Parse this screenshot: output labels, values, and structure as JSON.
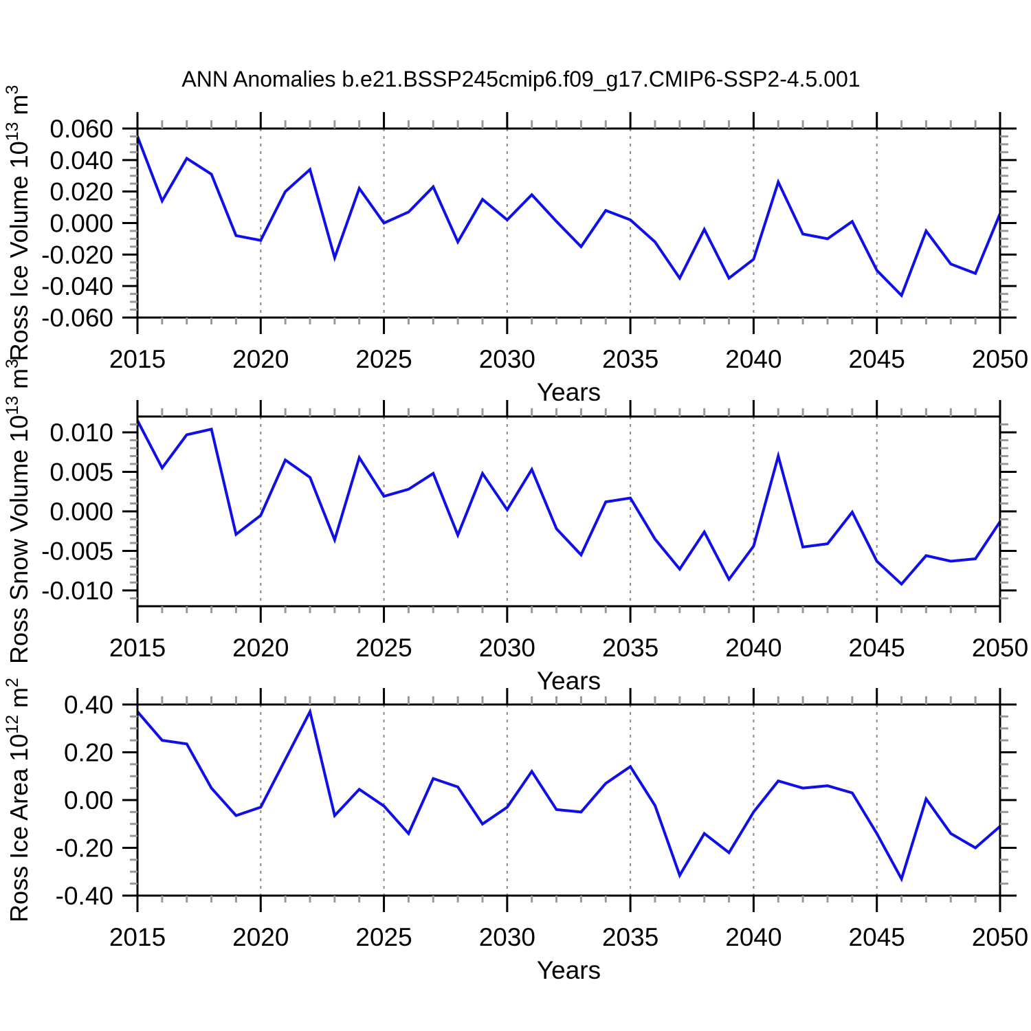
{
  "title": "ANN Anomalies b.e21.BSSP245cmip6.f09_g17.CMIP6-SSP2-4.5.001",
  "years": [
    2015,
    2016,
    2017,
    2018,
    2019,
    2020,
    2021,
    2022,
    2023,
    2024,
    2025,
    2026,
    2027,
    2028,
    2029,
    2030,
    2031,
    2032,
    2033,
    2034,
    2035,
    2036,
    2037,
    2038,
    2039,
    2040,
    2041,
    2042,
    2043,
    2044,
    2045,
    2046,
    2047,
    2048,
    2049,
    2050
  ],
  "axes": {
    "x_major_ticks": [
      2015,
      2020,
      2025,
      2030,
      2035,
      2040,
      2045,
      2050
    ],
    "x_tick_labels": [
      "2015",
      "2020",
      "2025",
      "2030",
      "2035",
      "2040",
      "2045",
      "2050"
    ],
    "x_gridlines": [
      2020,
      2025,
      2030,
      2035,
      2040,
      2045
    ],
    "xlabel": "Years"
  },
  "colors": {
    "line": "#0F0FE8",
    "frame": "#000000",
    "grid": "#888888",
    "minor_tick": "#999999",
    "background": "#FFFFFF",
    "text": "#000000"
  },
  "chart_data": [
    {
      "type": "line",
      "name": "ross-ice-volume",
      "ylabel": "Ross Ice Volume 10^13 m^3",
      "ylabel_parts": [
        {
          "text": "Ross Ice Volume 10",
          "sup": false
        },
        {
          "text": "13",
          "sup": true
        },
        {
          "text": " m",
          "sup": false
        },
        {
          "text": "3",
          "sup": true
        }
      ],
      "xlabel": "Years",
      "ylim": [
        -0.06,
        0.06
      ],
      "ymajor_step": 0.02,
      "yminor_step": 0.005,
      "ytick_labels": [
        "0.060",
        "0.040",
        "0.020",
        "0.000",
        "-0.020",
        "-0.040",
        "-0.060"
      ],
      "x": [
        2015,
        2016,
        2017,
        2018,
        2019,
        2020,
        2021,
        2022,
        2023,
        2024,
        2025,
        2026,
        2027,
        2028,
        2029,
        2030,
        2031,
        2032,
        2033,
        2034,
        2035,
        2036,
        2037,
        2038,
        2039,
        2040,
        2041,
        2042,
        2043,
        2044,
        2045,
        2046,
        2047,
        2048,
        2049,
        2050
      ],
      "values": [
        0.055,
        0.014,
        0.041,
        0.031,
        -0.008,
        -0.011,
        0.02,
        0.034,
        -0.022,
        0.022,
        0.0,
        0.007,
        0.023,
        -0.012,
        0.015,
        0.002,
        0.018,
        0.001,
        -0.015,
        0.008,
        0.002,
        -0.012,
        -0.035,
        -0.004,
        -0.035,
        -0.023,
        0.026,
        -0.007,
        -0.01,
        0.001,
        -0.03,
        -0.046,
        -0.005,
        -0.026,
        -0.032,
        0.006
      ]
    },
    {
      "type": "line",
      "name": "ross-snow-volume",
      "ylabel": "Ross Snow Volume 10^13 m^3",
      "ylabel_parts": [
        {
          "text": "Ross Snow Volume 10",
          "sup": false
        },
        {
          "text": "13",
          "sup": true
        },
        {
          "text": " m",
          "sup": false
        },
        {
          "text": "3",
          "sup": true
        }
      ],
      "xlabel": "Years",
      "ylim": [
        -0.012,
        0.012
      ],
      "ymajor_step": 0.005,
      "yminor_step": 0.001,
      "ytick_labels": [
        "0.010",
        "0.005",
        "0.000",
        "-0.005",
        "-0.010"
      ],
      "x": [
        2015,
        2016,
        2017,
        2018,
        2019,
        2020,
        2021,
        2022,
        2023,
        2024,
        2025,
        2026,
        2027,
        2028,
        2029,
        2030,
        2031,
        2032,
        2033,
        2034,
        2035,
        2036,
        2037,
        2038,
        2039,
        2040,
        2041,
        2042,
        2043,
        2044,
        2045,
        2046,
        2047,
        2048,
        2049,
        2050
      ],
      "values": [
        0.0115,
        0.0055,
        0.0097,
        0.0104,
        -0.0029,
        -0.0005,
        0.0065,
        0.0043,
        -0.0036,
        0.0068,
        0.0019,
        0.0028,
        0.0048,
        -0.003,
        0.0048,
        0.0002,
        0.0053,
        -0.0022,
        -0.0055,
        0.0012,
        0.0017,
        -0.0035,
        -0.0073,
        -0.0026,
        -0.0086,
        -0.0044,
        0.007,
        -0.0045,
        -0.0041,
        -0.0001,
        -0.0063,
        -0.0092,
        -0.0056,
        -0.0063,
        -0.006,
        -0.0013
      ]
    },
    {
      "type": "line",
      "name": "ross-ice-area",
      "ylabel": "Ross Ice Area 10^12 m^2",
      "ylabel_parts": [
        {
          "text": "Ross Ice Area 10",
          "sup": false
        },
        {
          "text": "12",
          "sup": true
        },
        {
          "text": " m",
          "sup": false
        },
        {
          "text": "2",
          "sup": true
        }
      ],
      "xlabel": "Years",
      "ylim": [
        -0.4,
        0.4
      ],
      "ymajor_step": 0.2,
      "yminor_step": 0.05,
      "ytick_labels": [
        "0.40",
        "0.20",
        "0.00",
        "-0.20",
        "-0.40"
      ],
      "x": [
        2015,
        2016,
        2017,
        2018,
        2019,
        2020,
        2021,
        2022,
        2023,
        2024,
        2025,
        2026,
        2027,
        2028,
        2029,
        2030,
        2031,
        2032,
        2033,
        2034,
        2035,
        2036,
        2037,
        2038,
        2039,
        2040,
        2041,
        2042,
        2043,
        2044,
        2045,
        2046,
        2047,
        2048,
        2049,
        2050
      ],
      "values": [
        0.37,
        0.25,
        0.235,
        0.05,
        -0.065,
        -0.03,
        0.17,
        0.37,
        -0.065,
        0.045,
        -0.025,
        -0.14,
        0.09,
        0.055,
        -0.1,
        -0.03,
        0.12,
        -0.04,
        -0.05,
        0.07,
        0.14,
        -0.023,
        -0.315,
        -0.14,
        -0.22,
        -0.05,
        0.08,
        0.05,
        0.06,
        0.03,
        -0.14,
        -0.33,
        0.005,
        -0.14,
        -0.2,
        -0.11
      ]
    }
  ]
}
